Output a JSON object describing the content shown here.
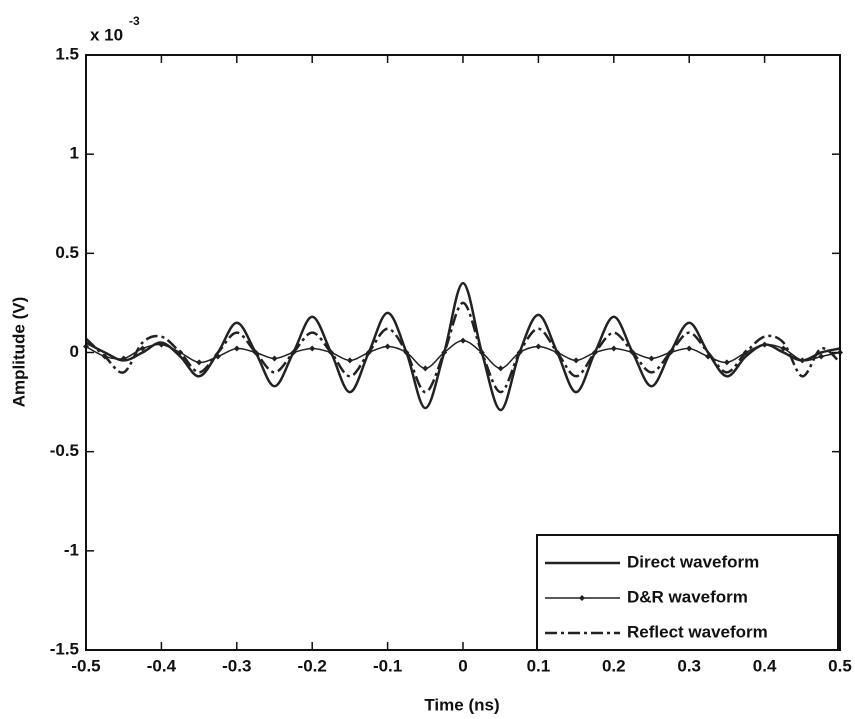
{
  "chart_data": {
    "type": "line",
    "xlabel": "Time (ns)",
    "ylabel": "Amplitude (V)",
    "y_multiplier": "x 10",
    "y_multiplier_exponent": "-3",
    "x": [
      -0.5,
      -0.475,
      -0.45,
      -0.425,
      -0.4,
      -0.375,
      -0.35,
      -0.325,
      -0.3,
      -0.275,
      -0.25,
      -0.225,
      -0.2,
      -0.175,
      -0.15,
      -0.125,
      -0.1,
      -0.075,
      -0.05,
      -0.025,
      0,
      0.025,
      0.05,
      0.075,
      0.1,
      0.125,
      0.15,
      0.175,
      0.2,
      0.225,
      0.25,
      0.275,
      0.3,
      0.325,
      0.35,
      0.375,
      0.4,
      0.425,
      0.45,
      0.475,
      0.5
    ],
    "series": [
      {
        "name": "Direct waveform",
        "color": "#222222",
        "style": "solid",
        "marker": "none",
        "values": [
          0.05,
          0,
          -0.04,
          0,
          0.05,
          -0.02,
          -0.12,
          0,
          0.15,
          0,
          -0.17,
          0,
          0.18,
          0,
          -0.2,
          0,
          0.2,
          0,
          -0.28,
          0,
          0.35,
          0,
          -0.29,
          0,
          0.19,
          0,
          -0.2,
          0,
          0.18,
          0,
          -0.17,
          0,
          0.15,
          0,
          -0.12,
          -0.02,
          0.04,
          0,
          -0.04,
          0,
          0.02
        ]
      },
      {
        "name": "D&R waveform",
        "color": "#222222",
        "style": "solid",
        "marker": "diamond",
        "values": [
          0.03,
          -0.02,
          -0.03,
          0.02,
          0.04,
          0,
          -0.05,
          -0.02,
          0.02,
          0,
          -0.03,
          0,
          0.02,
          0,
          -0.04,
          0,
          0.03,
          0,
          -0.08,
          0,
          0.06,
          0,
          -0.08,
          0,
          0.03,
          0,
          -0.04,
          0,
          0.02,
          0,
          -0.03,
          0,
          0.02,
          -0.02,
          -0.05,
          0,
          0.04,
          0.02,
          -0.04,
          -0.02,
          0
        ]
      },
      {
        "name": "Reflect waveform",
        "color": "#222222",
        "style": "dashdot",
        "marker": "none",
        "values": [
          0.07,
          -0.02,
          -0.1,
          0.05,
          0.08,
          0,
          -0.1,
          0,
          0.1,
          0,
          -0.1,
          0,
          0.1,
          0,
          -0.12,
          0,
          0.12,
          0,
          -0.2,
          0,
          0.25,
          0,
          -0.2,
          0,
          0.12,
          0,
          -0.12,
          0,
          0.1,
          0,
          -0.1,
          0,
          0.1,
          0,
          -0.1,
          0,
          0.08,
          0.05,
          -0.12,
          0.02,
          -0.05
        ]
      }
    ],
    "xlim": [
      -0.5,
      0.5
    ],
    "xticks": [
      -0.5,
      -0.4,
      -0.3,
      -0.2,
      -0.1,
      0,
      0.1,
      0.2,
      0.3,
      0.4,
      0.5
    ],
    "ylim": [
      -1.5,
      1.5
    ],
    "yticks": [
      -1.5,
      -1,
      -0.5,
      0,
      0.5,
      1,
      1.5
    ],
    "grid": false,
    "legend": "lower right"
  }
}
